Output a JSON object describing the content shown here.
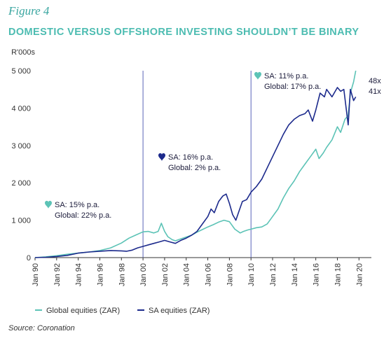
{
  "figure_label": "Figure 4",
  "headline": "DOMESTIC VERSUS OFFSHORE INVESTING SHOULDN’T BE BINARY",
  "source": "Source: Coronation",
  "chart_data": {
    "type": "line",
    "ylabel": "R'000s",
    "ylim": [
      0,
      5000
    ],
    "y_ticks": [
      0,
      1000,
      2000,
      3000,
      4000,
      5000
    ],
    "y_tick_labels": [
      "0",
      "1 000",
      "2 000",
      "3 000",
      "4 000",
      "5 000"
    ],
    "xlim": [
      1990,
      2020.5
    ],
    "x_tick_labels": [
      "Jan 90",
      "Jan 92",
      "Jan 94",
      "Jan 96",
      "Jan 98",
      "Jan 00",
      "Jan 02",
      "Jan 04",
      "Jan 06",
      "Jan 08",
      "Jan 10",
      "Jan 12",
      "Jan 14",
      "Jan 16",
      "Jan 18",
      "Jan 20"
    ],
    "vertical_markers": [
      2000,
      2010
    ],
    "grid": false,
    "legend_position": "bottom",
    "series": [
      {
        "name": "Global equities (ZAR)",
        "color": "#5cc3b6",
        "x": [
          1990,
          1991,
          1992,
          1993,
          1994,
          1995,
          1996,
          1997,
          1998,
          1998.7,
          1999.3,
          2000,
          2000.5,
          2001,
          2001.4,
          2001.7,
          2002,
          2002.3,
          2002.7,
          2003,
          2003.5,
          2004,
          2004.5,
          2005,
          2005.5,
          2006,
          2006.5,
          2007,
          2007.5,
          2008,
          2008.5,
          2009,
          2009.3,
          2009.7,
          2010,
          2010.5,
          2011,
          2011.5,
          2012,
          2012.5,
          2013,
          2013.5,
          2014,
          2014.5,
          2015,
          2015.5,
          2016,
          2016.3,
          2016.7,
          2017,
          2017.5,
          2018,
          2018.3,
          2018.7,
          2019,
          2019.2,
          2019.5,
          2019.7
        ],
        "values": [
          0,
          20,
          50,
          90,
          120,
          150,
          190,
          260,
          390,
          520,
          600,
          690,
          700,
          660,
          700,
          920,
          700,
          560,
          480,
          450,
          500,
          550,
          600,
          680,
          750,
          820,
          880,
          950,
          1000,
          960,
          760,
          660,
          700,
          740,
          760,
          800,
          820,
          900,
          1100,
          1300,
          1600,
          1850,
          2050,
          2300,
          2500,
          2700,
          2900,
          2650,
          2800,
          2950,
          3150,
          3500,
          3350,
          3700,
          3800,
          4400,
          4700,
          5000
        ]
      },
      {
        "name": "SA equities (ZAR)",
        "color": "#1c2a8c",
        "x": [
          1990,
          1991,
          1992,
          1993,
          1994,
          1995,
          1996,
          1997,
          1998,
          1998.5,
          1999,
          1999.5,
          2000,
          2000.5,
          2001,
          2001.5,
          2002,
          2002.5,
          2003,
          2003.5,
          2004,
          2004.5,
          2005,
          2005.5,
          2006,
          2006.3,
          2006.6,
          2007,
          2007.4,
          2007.7,
          2008,
          2008.3,
          2008.6,
          2008.9,
          2009.2,
          2009.6,
          2010,
          2010.5,
          2011,
          2011.5,
          2012,
          2012.5,
          2013,
          2013.5,
          2014,
          2014.5,
          2015,
          2015.3,
          2015.7,
          2016,
          2016.4,
          2016.8,
          2017,
          2017.5,
          2018,
          2018.3,
          2018.6,
          2019,
          2019.2,
          2019.5,
          2019.7
        ],
        "values": [
          0,
          10,
          30,
          60,
          120,
          150,
          170,
          190,
          180,
          170,
          200,
          260,
          300,
          340,
          380,
          420,
          460,
          420,
          380,
          460,
          520,
          600,
          700,
          900,
          1100,
          1300,
          1200,
          1500,
          1650,
          1700,
          1450,
          1150,
          1000,
          1250,
          1500,
          1550,
          1750,
          1900,
          2100,
          2400,
          2700,
          3000,
          3300,
          3550,
          3700,
          3800,
          3850,
          3950,
          3650,
          3950,
          4400,
          4300,
          4500,
          4300,
          4550,
          4450,
          4500,
          3550,
          4500,
          4200,
          4300
        ]
      }
    ],
    "annotations": [
      {
        "line1": "SA: 15% p.a.",
        "line2": "Global: 22% p.a.",
        "icon": "heart-icon",
        "icon_color": "#5cc3b6"
      },
      {
        "line1": "SA: 16% p.a.",
        "line2": "Global: 2% p.a.",
        "icon": "heart-icon",
        "icon_color": "#1c2a8c"
      },
      {
        "line1": "SA: 11% p.a.",
        "line2": "Global: 17% p.a.",
        "icon": "heart-icon",
        "icon_color": "#5cc3b6"
      }
    ],
    "end_labels": [
      "48x",
      "41x"
    ]
  }
}
